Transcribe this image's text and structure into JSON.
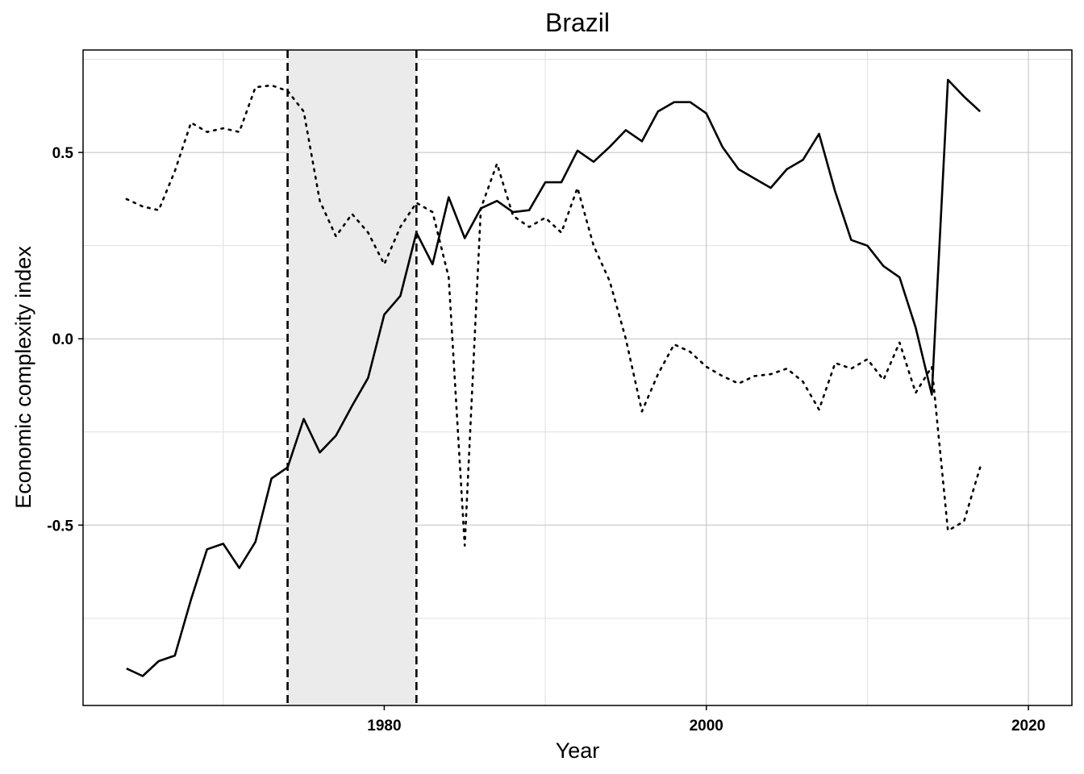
{
  "chart_data": {
    "type": "line",
    "title": "Brazil",
    "xlabel": "Year",
    "ylabel": "Economic complexity index",
    "xlim": [
      1961.3,
      2022.7
    ],
    "ylim": [
      -0.984,
      0.775
    ],
    "x_ticks": [
      1980,
      2000,
      2020
    ],
    "x_tick_labels": [
      "1980",
      "2000",
      "2020"
    ],
    "y_ticks": [
      -0.5,
      0.0,
      0.5
    ],
    "y_tick_labels": [
      "-0.5",
      "0.0",
      "0.5"
    ],
    "grid": true,
    "legend": "none",
    "shaded_period": [
      1974,
      1982
    ],
    "vlines": [
      1974,
      1982
    ],
    "colors": {
      "line": "#000000",
      "shade": "#ebebeb",
      "grid_major": "#bfbfbf",
      "grid_minor": "#e0e0e0"
    },
    "series": [
      {
        "style": "solid",
        "x": [
          1964,
          1965,
          1966,
          1967,
          1968,
          1969,
          1970,
          1971,
          1972,
          1973,
          1974,
          1975,
          1976,
          1977,
          1978,
          1979,
          1980,
          1981,
          1982,
          1983,
          1984,
          1985,
          1986,
          1987,
          1988,
          1989,
          1990,
          1991,
          1992,
          1993,
          1994,
          1995,
          1996,
          1997,
          1998,
          1999,
          2000,
          2001,
          2002,
          2003,
          2004,
          2005,
          2006,
          2007,
          2008,
          2009,
          2010,
          2011,
          2012,
          2013,
          2014,
          2015,
          2016,
          2017
        ],
        "y": [
          -0.885,
          -0.905,
          -0.865,
          -0.85,
          -0.7,
          -0.565,
          -0.55,
          -0.615,
          -0.545,
          -0.375,
          -0.345,
          -0.215,
          -0.305,
          -0.26,
          -0.18,
          -0.105,
          0.065,
          0.115,
          0.285,
          0.2,
          0.38,
          0.27,
          0.35,
          0.37,
          0.34,
          0.345,
          0.42,
          0.42,
          0.505,
          0.475,
          0.515,
          0.56,
          0.53,
          0.61,
          0.635,
          0.635,
          0.605,
          0.515,
          0.455,
          0.43,
          0.405,
          0.455,
          0.48,
          0.55,
          0.395,
          0.265,
          0.25,
          0.195,
          0.165,
          0.03,
          -0.15,
          0.695,
          0.65,
          0.61
        ]
      },
      {
        "style": "dotted",
        "x": [
          1964,
          1965,
          1966,
          1967,
          1968,
          1969,
          1970,
          1971,
          1972,
          1973,
          1974,
          1975,
          1976,
          1977,
          1978,
          1979,
          1980,
          1981,
          1982,
          1983,
          1984,
          1985,
          1986,
          1987,
          1988,
          1989,
          1990,
          1991,
          1992,
          1993,
          1994,
          1995,
          1996,
          1997,
          1998,
          1999,
          2000,
          2001,
          2002,
          2003,
          2004,
          2005,
          2006,
          2007,
          2008,
          2009,
          2010,
          2011,
          2012,
          2013,
          2014,
          2015,
          2016,
          2017
        ],
        "y": [
          0.375,
          0.355,
          0.345,
          0.45,
          0.58,
          0.555,
          0.565,
          0.555,
          0.675,
          0.68,
          0.665,
          0.61,
          0.37,
          0.275,
          0.335,
          0.285,
          0.2,
          0.3,
          0.365,
          0.34,
          0.165,
          -0.555,
          0.35,
          0.47,
          0.33,
          0.3,
          0.325,
          0.285,
          0.405,
          0.25,
          0.155,
          0.0,
          -0.195,
          -0.095,
          -0.015,
          -0.035,
          -0.075,
          -0.1,
          -0.12,
          -0.1,
          -0.095,
          -0.08,
          -0.115,
          -0.19,
          -0.065,
          -0.08,
          -0.055,
          -0.11,
          -0.01,
          -0.145,
          -0.075,
          -0.515,
          -0.49,
          -0.345
        ]
      }
    ]
  }
}
